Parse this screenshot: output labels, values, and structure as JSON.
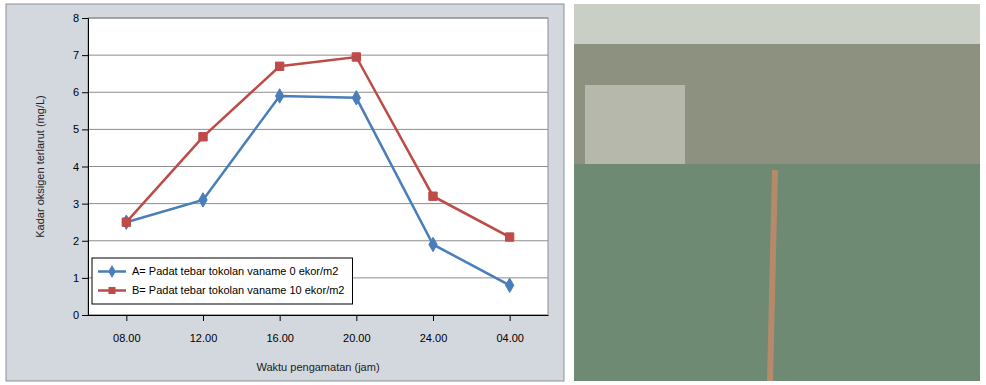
{
  "chart_data": {
    "type": "line",
    "x_label": "Waktu pengamatan (jam)",
    "y_label": "Kadar oksigen terlarut (mg/L)",
    "categories": [
      "08.00",
      "12.00",
      "16.00",
      "20.00",
      "24.00",
      "04.00"
    ],
    "series": [
      {
        "name": "A= Padat tebar tokolan vaname 0 ekor/m2",
        "color": "#4a7ebb",
        "marker": "diamond",
        "values": [
          2.5,
          3.1,
          5.9,
          5.85,
          1.9,
          0.8
        ]
      },
      {
        "name": "B= Padat tebar tokolan vaname 10 ekor/m2",
        "color": "#be4b48",
        "marker": "square",
        "values": [
          2.5,
          4.8,
          6.7,
          6.95,
          3.2,
          2.1
        ]
      }
    ],
    "ylim": [
      0,
      8
    ],
    "yticks": [
      0,
      1,
      2,
      3,
      4,
      5,
      6,
      7,
      8
    ],
    "grid": true,
    "legend": "lower left"
  }
}
